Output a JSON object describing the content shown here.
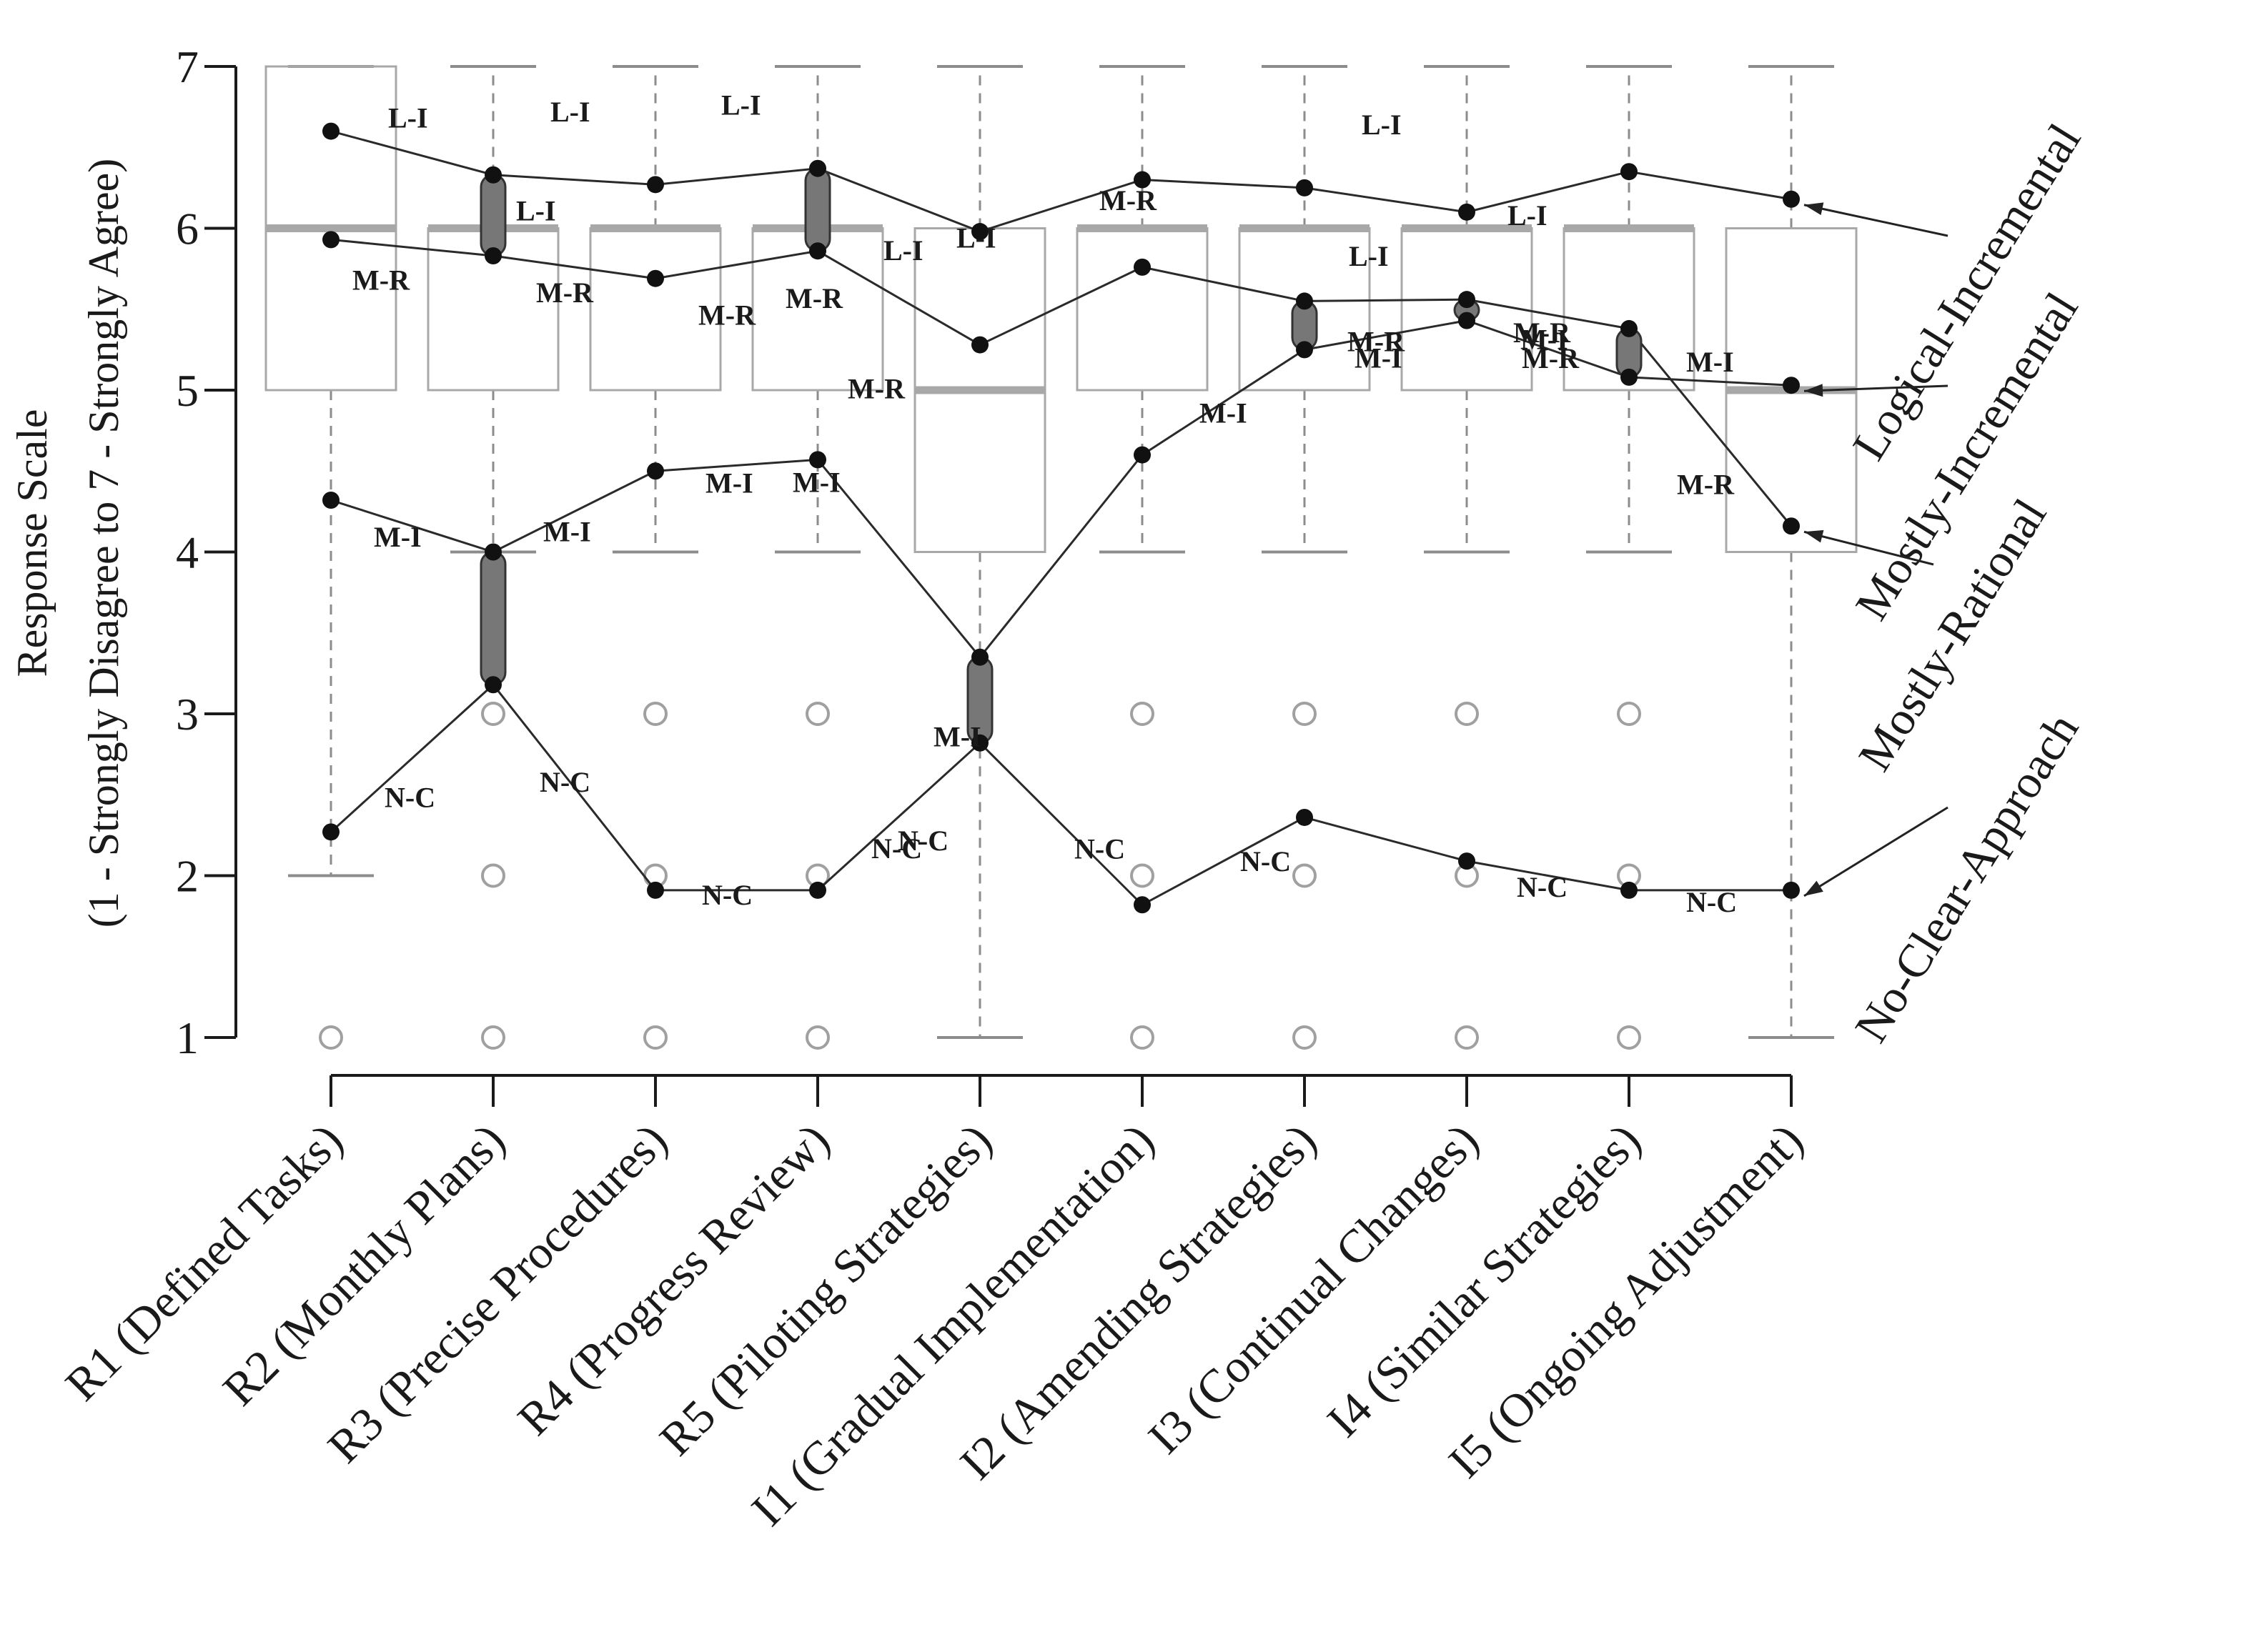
{
  "chart_data": {
    "type": "box-with-lines",
    "ylabel_line1": "Response Scale",
    "ylabel_line2": "(1 - Strongly Disagree to 7 - Strongly Agree)",
    "ylim": [
      1,
      7
    ],
    "yticks": [
      "1",
      "2",
      "3",
      "4",
      "5",
      "6",
      "7"
    ],
    "categories": [
      "R1 (Defined Tasks)",
      "R2 (Monthly Plans)",
      "R3 (Precise Procedures)",
      "R4 (Progress Review)",
      "R5 (Piloting Strategies)",
      "I1 (Gradual Implementation)",
      "I2 (Amending Strategies)",
      "I3 (Continual Changes)",
      "I4 (Similar Strategies)",
      "I5 (Ongoing Adjustment)"
    ],
    "boxes": [
      {
        "q1": 5,
        "median": 6,
        "q3": 7,
        "whisker_low": 2,
        "whisker_high": 7,
        "outliers": [
          1
        ]
      },
      {
        "q1": 5,
        "median": 6,
        "q3": 6,
        "whisker_low": 4,
        "whisker_high": 7,
        "outliers": [
          1,
          2,
          3
        ]
      },
      {
        "q1": 5,
        "median": 6,
        "q3": 6,
        "whisker_low": 4,
        "whisker_high": 7,
        "outliers": [
          1,
          2,
          3
        ]
      },
      {
        "q1": 5,
        "median": 6,
        "q3": 6,
        "whisker_low": 4,
        "whisker_high": 7,
        "outliers": [
          1,
          2,
          3
        ]
      },
      {
        "q1": 4,
        "median": 5,
        "q3": 6,
        "whisker_low": 1,
        "whisker_high": 7,
        "outliers": []
      },
      {
        "q1": 5,
        "median": 6,
        "q3": 6,
        "whisker_low": 4,
        "whisker_high": 7,
        "outliers": [
          1,
          2,
          3
        ]
      },
      {
        "q1": 5,
        "median": 6,
        "q3": 6,
        "whisker_low": 4,
        "whisker_high": 7,
        "outliers": [
          1,
          2,
          3
        ]
      },
      {
        "q1": 5,
        "median": 6,
        "q3": 6,
        "whisker_low": 4,
        "whisker_high": 7,
        "outliers": [
          1,
          2,
          3
        ]
      },
      {
        "q1": 5,
        "median": 6,
        "q3": 6,
        "whisker_low": 4,
        "whisker_high": 7,
        "outliers": [
          1,
          2,
          3
        ]
      },
      {
        "q1": 4,
        "median": 5,
        "q3": 6,
        "whisker_low": 1,
        "whisker_high": 7,
        "outliers": []
      }
    ],
    "series": [
      {
        "name": "Logical-Incremental",
        "abbr": "L-I",
        "values": [
          6.6,
          6.33,
          6.27,
          6.37,
          5.98,
          6.3,
          6.25,
          6.1,
          6.35,
          6.18
        ]
      },
      {
        "name": "Mostly-Incremental",
        "abbr": "M-I",
        "values": [
          4.32,
          4.0,
          4.5,
          4.57,
          3.35,
          4.6,
          5.25,
          5.43,
          5.08,
          5.03
        ]
      },
      {
        "name": "Mostly-Rational",
        "abbr": "M-R",
        "values": [
          5.93,
          5.83,
          5.69,
          5.86,
          5.28,
          5.76,
          5.55,
          5.56,
          5.38,
          4.16
        ]
      },
      {
        "name": "No-Clear-Approach",
        "abbr": "N-C",
        "values": [
          2.27,
          3.18,
          1.91,
          1.91,
          2.82,
          1.82,
          2.36,
          2.09,
          1.91,
          1.91
        ]
      }
    ],
    "ranges": [
      {
        "category": 1,
        "low": 5.83,
        "high": 6.33
      },
      {
        "category": 1,
        "low": 3.18,
        "high": 4.0
      },
      {
        "category": 3,
        "low": 5.86,
        "high": 6.37
      },
      {
        "category": 4,
        "low": 2.82,
        "high": 3.35
      },
      {
        "category": 6,
        "low": 5.25,
        "high": 5.55
      },
      {
        "category": 7,
        "low": 5.43,
        "high": 5.56
      },
      {
        "category": 8,
        "low": 5.08,
        "high": 5.38
      }
    ],
    "point_labels": [
      {
        "series": 0,
        "index": 0,
        "text": "L-I"
      },
      {
        "series": 0,
        "index": 1,
        "text": "L-I"
      },
      {
        "series": 0,
        "index": 2,
        "text": "L-I"
      },
      {
        "series": 0,
        "index": 3,
        "text": "L-I"
      },
      {
        "series": 0,
        "index": 4,
        "text": "L-I"
      },
      {
        "series": 0,
        "index": 5,
        "text": "L-I"
      },
      {
        "series": 0,
        "index": 6,
        "text": "L-I"
      },
      {
        "series": 0,
        "index": 7,
        "text": "L-I"
      },
      {
        "series": 0,
        "index": 8,
        "text": "L-I"
      },
      {
        "series": 2,
        "index": 0,
        "text": "M-R"
      },
      {
        "series": 2,
        "index": 1,
        "text": "M-R"
      },
      {
        "series": 2,
        "index": 2,
        "text": "M-R"
      },
      {
        "series": 2,
        "index": 3,
        "text": "M-R"
      },
      {
        "series": 2,
        "index": 4,
        "text": "M-R"
      },
      {
        "series": 2,
        "index": 5,
        "text": "M-R"
      },
      {
        "series": 2,
        "index": 6,
        "text": "M-R"
      },
      {
        "series": 2,
        "index": 7,
        "text": "M-R"
      },
      {
        "series": 2,
        "index": 8,
        "text": "M-R"
      },
      {
        "series": 1,
        "index": 0,
        "text": "M-I"
      },
      {
        "series": 1,
        "index": 1,
        "text": "M-I"
      },
      {
        "series": 1,
        "index": 2,
        "text": "M-I"
      },
      {
        "series": 1,
        "index": 3,
        "text": "M-I"
      },
      {
        "series": 1,
        "index": 4,
        "text": "M-I"
      },
      {
        "series": 1,
        "index": 5,
        "text": "M-I"
      },
      {
        "series": 1,
        "index": 6,
        "text": "M-I"
      },
      {
        "series": 1,
        "index": 7,
        "text": "M-I"
      },
      {
        "series": 1,
        "index": 8,
        "text": "M-I"
      },
      {
        "series": 3,
        "index": 0,
        "text": "N-C"
      },
      {
        "series": 3,
        "index": 1,
        "text": "N-C"
      },
      {
        "series": 3,
        "index": 2,
        "text": "N-C"
      },
      {
        "series": 3,
        "index": 3,
        "text": "N-C"
      },
      {
        "series": 3,
        "index": 4,
        "text": "N-C"
      },
      {
        "series": 3,
        "index": 5,
        "text": "N-C"
      },
      {
        "series": 3,
        "index": 6,
        "text": "N-C"
      },
      {
        "series": 3,
        "index": 7,
        "text": "N-C"
      },
      {
        "series": 3,
        "index": 8,
        "text": "N-C"
      },
      {
        "series": 2,
        "index": 9,
        "text": "M-R"
      }
    ],
    "colors": {
      "axis": "#1a1a1a",
      "box": "#a8a8a8",
      "median": "#a8a8a8",
      "whisker": "#8c8c8c",
      "outlier": "#a0a0a0",
      "line": "#2a2a2a",
      "point": "#111111",
      "range_fill": "#777777"
    }
  }
}
